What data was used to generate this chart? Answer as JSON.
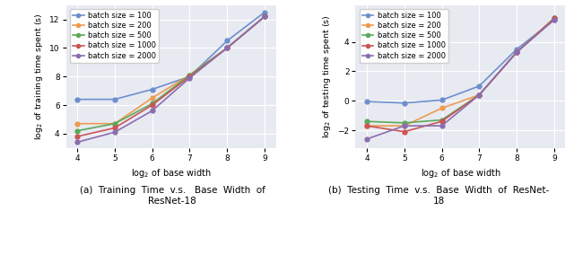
{
  "x_values": [
    4,
    5,
    6,
    7,
    8,
    9
  ],
  "batch_sizes": [
    100,
    200,
    500,
    1000,
    2000
  ],
  "colors": [
    "#6d8fcd",
    "#ee9b4e",
    "#5aaa5a",
    "#cc5555",
    "#8b6db0"
  ],
  "train_data": {
    "100": [
      6.4,
      6.4,
      7.1,
      8.0,
      10.5,
      12.5
    ],
    "200": [
      4.7,
      4.7,
      6.5,
      8.1,
      10.0,
      12.2
    ],
    "500": [
      4.2,
      4.7,
      6.1,
      8.1,
      10.0,
      12.2
    ],
    "1000": [
      3.8,
      4.4,
      6.0,
      8.0,
      10.0,
      12.2
    ],
    "2000": [
      3.4,
      4.1,
      5.6,
      7.9,
      10.0,
      12.2
    ]
  },
  "test_data": {
    "100": [
      -0.05,
      -0.15,
      0.05,
      1.0,
      3.5,
      5.5
    ],
    "200": [
      -1.7,
      -1.7,
      -0.5,
      0.4,
      3.3,
      5.6
    ],
    "500": [
      -1.4,
      -1.5,
      -1.3,
      0.4,
      3.3,
      5.6
    ],
    "1000": [
      -1.7,
      -2.1,
      -1.4,
      0.4,
      3.3,
      5.6
    ],
    "2000": [
      -2.6,
      -1.7,
      -1.7,
      0.4,
      3.3,
      5.5
    ]
  },
  "train_ylim": [
    3,
    13
  ],
  "test_ylim": [
    -3.2,
    6.5
  ],
  "train_yticks": [
    4,
    6,
    8,
    10,
    12
  ],
  "test_yticks": [
    -2,
    0,
    2,
    4
  ],
  "xlabel": "log$_2$ of base width",
  "train_ylabel": "log$_2$ of training time spent (s)",
  "test_ylabel": "log$_2$ of testing time spent (s)",
  "caption_a": "(a)  Training  Time  v.s.   Base  Width  of\nResNet-18",
  "caption_b": "(b)  Testing  Time  v.s.  Base  Width  of  ResNet-\n18",
  "bg_color": "#e8eaf2",
  "legend_labels": [
    "batch size = 100",
    "batch size = 200",
    "batch size = 500",
    "batch size = 1000",
    "batch size = 2000"
  ]
}
